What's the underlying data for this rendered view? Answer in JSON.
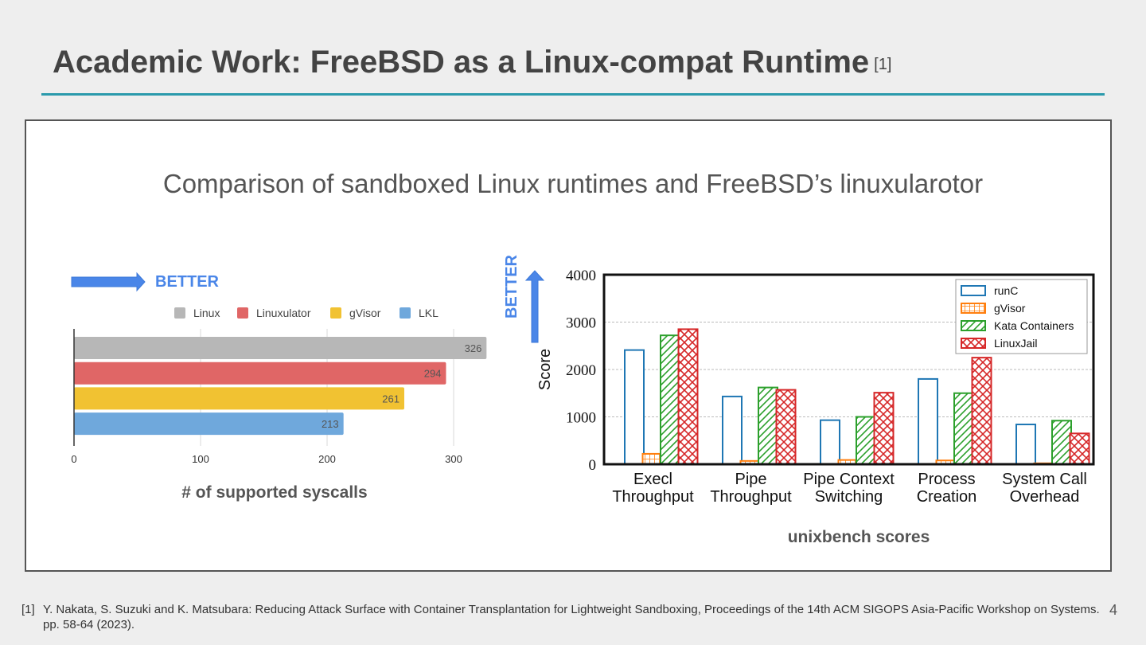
{
  "slide": {
    "title": "Academic Work: FreeBSD as a Linux-compat Runtime",
    "title_ref": "[1]",
    "subtitle": "Comparison of sandboxed Linux runtimes and FreeBSD’s linuxularotor",
    "footnote_num": "[1]",
    "footnote_text": "Y. Nakata, S. Suzuki and K. Matsubara: Reducing Attack Surface with Container Transplantation for Lightweight Sandboxing, Proceedings of the 14th ACM SIGOPS Asia-Pacific Workshop on Systems. pp. 58-64 (2023).",
    "page_number": "4",
    "accent_color": "#2b9aac"
  },
  "chart_data": [
    {
      "type": "bar",
      "orientation": "horizontal",
      "better_label": "BETTER",
      "better_direction": "right",
      "categories": [
        "Linux",
        "Linuxulator",
        "gVisor",
        "LKL"
      ],
      "values": [
        326,
        294,
        261,
        213
      ],
      "colors": [
        "#b7b7b7",
        "#e06666",
        "#f1c232",
        "#6fa8dc"
      ],
      "xlabel": "# of supported syscalls",
      "xlim": [
        0,
        330
      ],
      "xticks": [
        0,
        100,
        200,
        300
      ],
      "legend": "top",
      "grid": true
    },
    {
      "type": "bar",
      "better_label": "BETTER",
      "better_direction": "up",
      "categories": [
        [
          "Execl",
          "Throughput"
        ],
        [
          "Pipe",
          "Throughput"
        ],
        [
          "Pipe Context",
          "Switching"
        ],
        [
          "Process",
          "Creation"
        ],
        [
          "System Call",
          "Overhead"
        ]
      ],
      "series": [
        {
          "name": "runC",
          "color": "#1f77b4",
          "pattern": "none",
          "values": [
            2410,
            1430,
            930,
            1800,
            840
          ]
        },
        {
          "name": "gVisor",
          "color": "#ff7f0e",
          "pattern": "grid",
          "values": [
            220,
            70,
            90,
            80,
            20
          ]
        },
        {
          "name": "Kata Containers",
          "color": "#2ca02c",
          "pattern": "diagonal",
          "values": [
            2720,
            1620,
            1000,
            1500,
            920
          ]
        },
        {
          "name": "LinuxJail",
          "color": "#d62728",
          "pattern": "cross",
          "values": [
            2850,
            1570,
            1510,
            2250,
            650
          ]
        }
      ],
      "ylabel": "Score",
      "xlabel_caption": "unixbench scores",
      "ylim": [
        0,
        4000
      ],
      "yticks": [
        0,
        1000,
        2000,
        3000,
        4000
      ],
      "legend": "top-right",
      "grid": true
    }
  ]
}
